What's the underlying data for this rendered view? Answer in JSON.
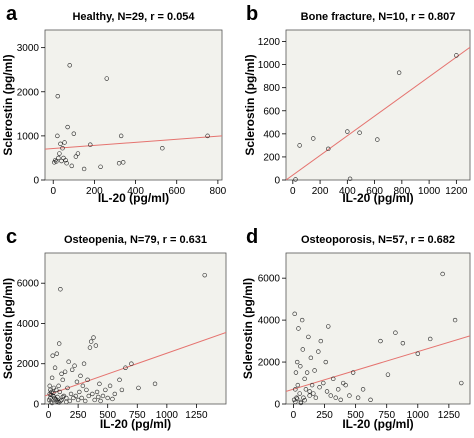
{
  "chart_data": [
    {
      "letter": "a",
      "type": "scatter",
      "title": "Healthy, N=29, r = 0.054",
      "xlabel": "IL-20 (pg/ml)",
      "ylabel": "Sclerostin (pg/ml)",
      "xlim": [
        -40,
        820
      ],
      "ylim": [
        0,
        3400
      ],
      "xticks": [
        0,
        200,
        400,
        600,
        800
      ],
      "yticks": [
        0,
        1000,
        2000,
        3000
      ],
      "fit_line": {
        "x": [
          -40,
          820
        ],
        "y": [
          700,
          1000
        ]
      },
      "points": {
        "x": [
          5,
          10,
          15,
          20,
          22,
          25,
          30,
          35,
          40,
          45,
          50,
          55,
          60,
          65,
          70,
          80,
          90,
          100,
          110,
          120,
          150,
          180,
          230,
          260,
          320,
          330,
          340,
          530,
          750
        ],
        "y": [
          400,
          450,
          420,
          1000,
          1900,
          500,
          600,
          820,
          430,
          720,
          500,
          850,
          450,
          380,
          1200,
          2600,
          320,
          1050,
          530,
          600,
          250,
          800,
          300,
          2300,
          380,
          1000,
          400,
          720,
          1000
        ]
      }
    },
    {
      "letter": "b",
      "type": "scatter",
      "title": "Bone fracture, N=10, r = 0.807",
      "xlabel": "IL-20 (pg/ml)",
      "ylabel": "Sclerostin (pg/ml)",
      "xlim": [
        -50,
        1300
      ],
      "ylim": [
        0,
        1300
      ],
      "xticks": [
        0,
        200,
        400,
        600,
        800,
        1000,
        1200
      ],
      "yticks": [
        0,
        200,
        400,
        600,
        800,
        1000,
        1200
      ],
      "fit_line": {
        "x": [
          -50,
          1300
        ],
        "y": [
          0,
          1150
        ]
      },
      "points": {
        "x": [
          20,
          50,
          150,
          260,
          400,
          490,
          620,
          780,
          1200,
          420
        ],
        "y": [
          5,
          300,
          360,
          270,
          420,
          410,
          350,
          930,
          1080,
          10
        ]
      }
    },
    {
      "letter": "c",
      "type": "scatter",
      "title": "Osteopenia, N=79, r = 0.631",
      "xlabel": "IL-20 (pg/ml)",
      "ylabel": "Sclerostin (pg/ml)",
      "xlim": [
        -30,
        1500
      ],
      "ylim": [
        0,
        7500
      ],
      "xticks": [
        0,
        250,
        500,
        750,
        1000,
        1250
      ],
      "yticks": [
        0,
        2000,
        4000,
        6000
      ],
      "fit_line": {
        "x": [
          -30,
          1500
        ],
        "y": [
          400,
          3550
        ]
      },
      "points": {
        "x": [
          5,
          10,
          15,
          20,
          25,
          30,
          35,
          40,
          45,
          50,
          55,
          60,
          65,
          70,
          75,
          80,
          85,
          90,
          95,
          100,
          110,
          120,
          130,
          140,
          150,
          160,
          170,
          180,
          190,
          200,
          210,
          220,
          230,
          240,
          250,
          260,
          270,
          280,
          290,
          300,
          310,
          320,
          330,
          340,
          350,
          360,
          370,
          380,
          390,
          400,
          410,
          420,
          430,
          440,
          460,
          480,
          500,
          520,
          540,
          560,
          600,
          620,
          650,
          700,
          760,
          900,
          1320,
          100,
          150,
          60,
          30,
          20,
          40,
          70,
          90,
          120,
          15,
          10,
          110
        ],
        "y": [
          200,
          500,
          300,
          100,
          600,
          1300,
          2400,
          400,
          800,
          300,
          1800,
          200,
          700,
          2500,
          350,
          100,
          900,
          3000,
          600,
          5700,
          200,
          1200,
          400,
          1600,
          300,
          800,
          2100,
          150,
          500,
          1700,
          300,
          1900,
          400,
          1100,
          200,
          600,
          1400,
          300,
          900,
          2000,
          150,
          700,
          1200,
          400,
          2800,
          3100,
          500,
          3300,
          200,
          2900,
          600,
          350,
          1000,
          150,
          400,
          700,
          300,
          900,
          250,
          500,
          1200,
          700,
          1800,
          2000,
          800,
          1000,
          6400,
          150,
          100,
          250,
          50,
          450,
          550,
          120,
          80,
          350,
          700,
          900,
          1500
        ]
      }
    },
    {
      "letter": "d",
      "type": "scatter",
      "title": "Osteoporosis, N=57, r = 0.682",
      "xlabel": "IL-20 (pg/ml)",
      "ylabel": "Sclerostin (pg/ml)",
      "xlim": [
        -60,
        1420
      ],
      "ylim": [
        0,
        7200
      ],
      "xticks": [
        0,
        250,
        500,
        750,
        1000,
        1250
      ],
      "yticks": [
        0,
        2000,
        4000,
        6000
      ],
      "fit_line": {
        "x": [
          -60,
          1420
        ],
        "y": [
          600,
          3250
        ]
      },
      "points": {
        "x": [
          5,
          10,
          15,
          20,
          25,
          30,
          35,
          40,
          50,
          55,
          60,
          70,
          75,
          80,
          90,
          100,
          110,
          120,
          130,
          140,
          150,
          160,
          170,
          180,
          200,
          210,
          220,
          240,
          260,
          270,
          280,
          300,
          320,
          340,
          360,
          380,
          400,
          420,
          450,
          480,
          520,
          560,
          620,
          700,
          760,
          820,
          880,
          1000,
          1100,
          1200,
          1300,
          1350,
          15,
          30,
          60,
          90,
          130
        ],
        "y": [
          200,
          4300,
          700,
          1500,
          300,
          2000,
          900,
          3600,
          500,
          1800,
          100,
          4000,
          2600,
          300,
          1200,
          700,
          1500,
          3200,
          400,
          2200,
          900,
          500,
          1600,
          300,
          2500,
          800,
          3000,
          1000,
          2000,
          600,
          3700,
          400,
          1200,
          300,
          700,
          200,
          1000,
          900,
          400,
          1500,
          300,
          700,
          200,
          3000,
          1400,
          3400,
          2900,
          2400,
          3100,
          6200,
          4000,
          1000,
          100,
          250,
          50,
          180,
          600
        ]
      }
    }
  ]
}
